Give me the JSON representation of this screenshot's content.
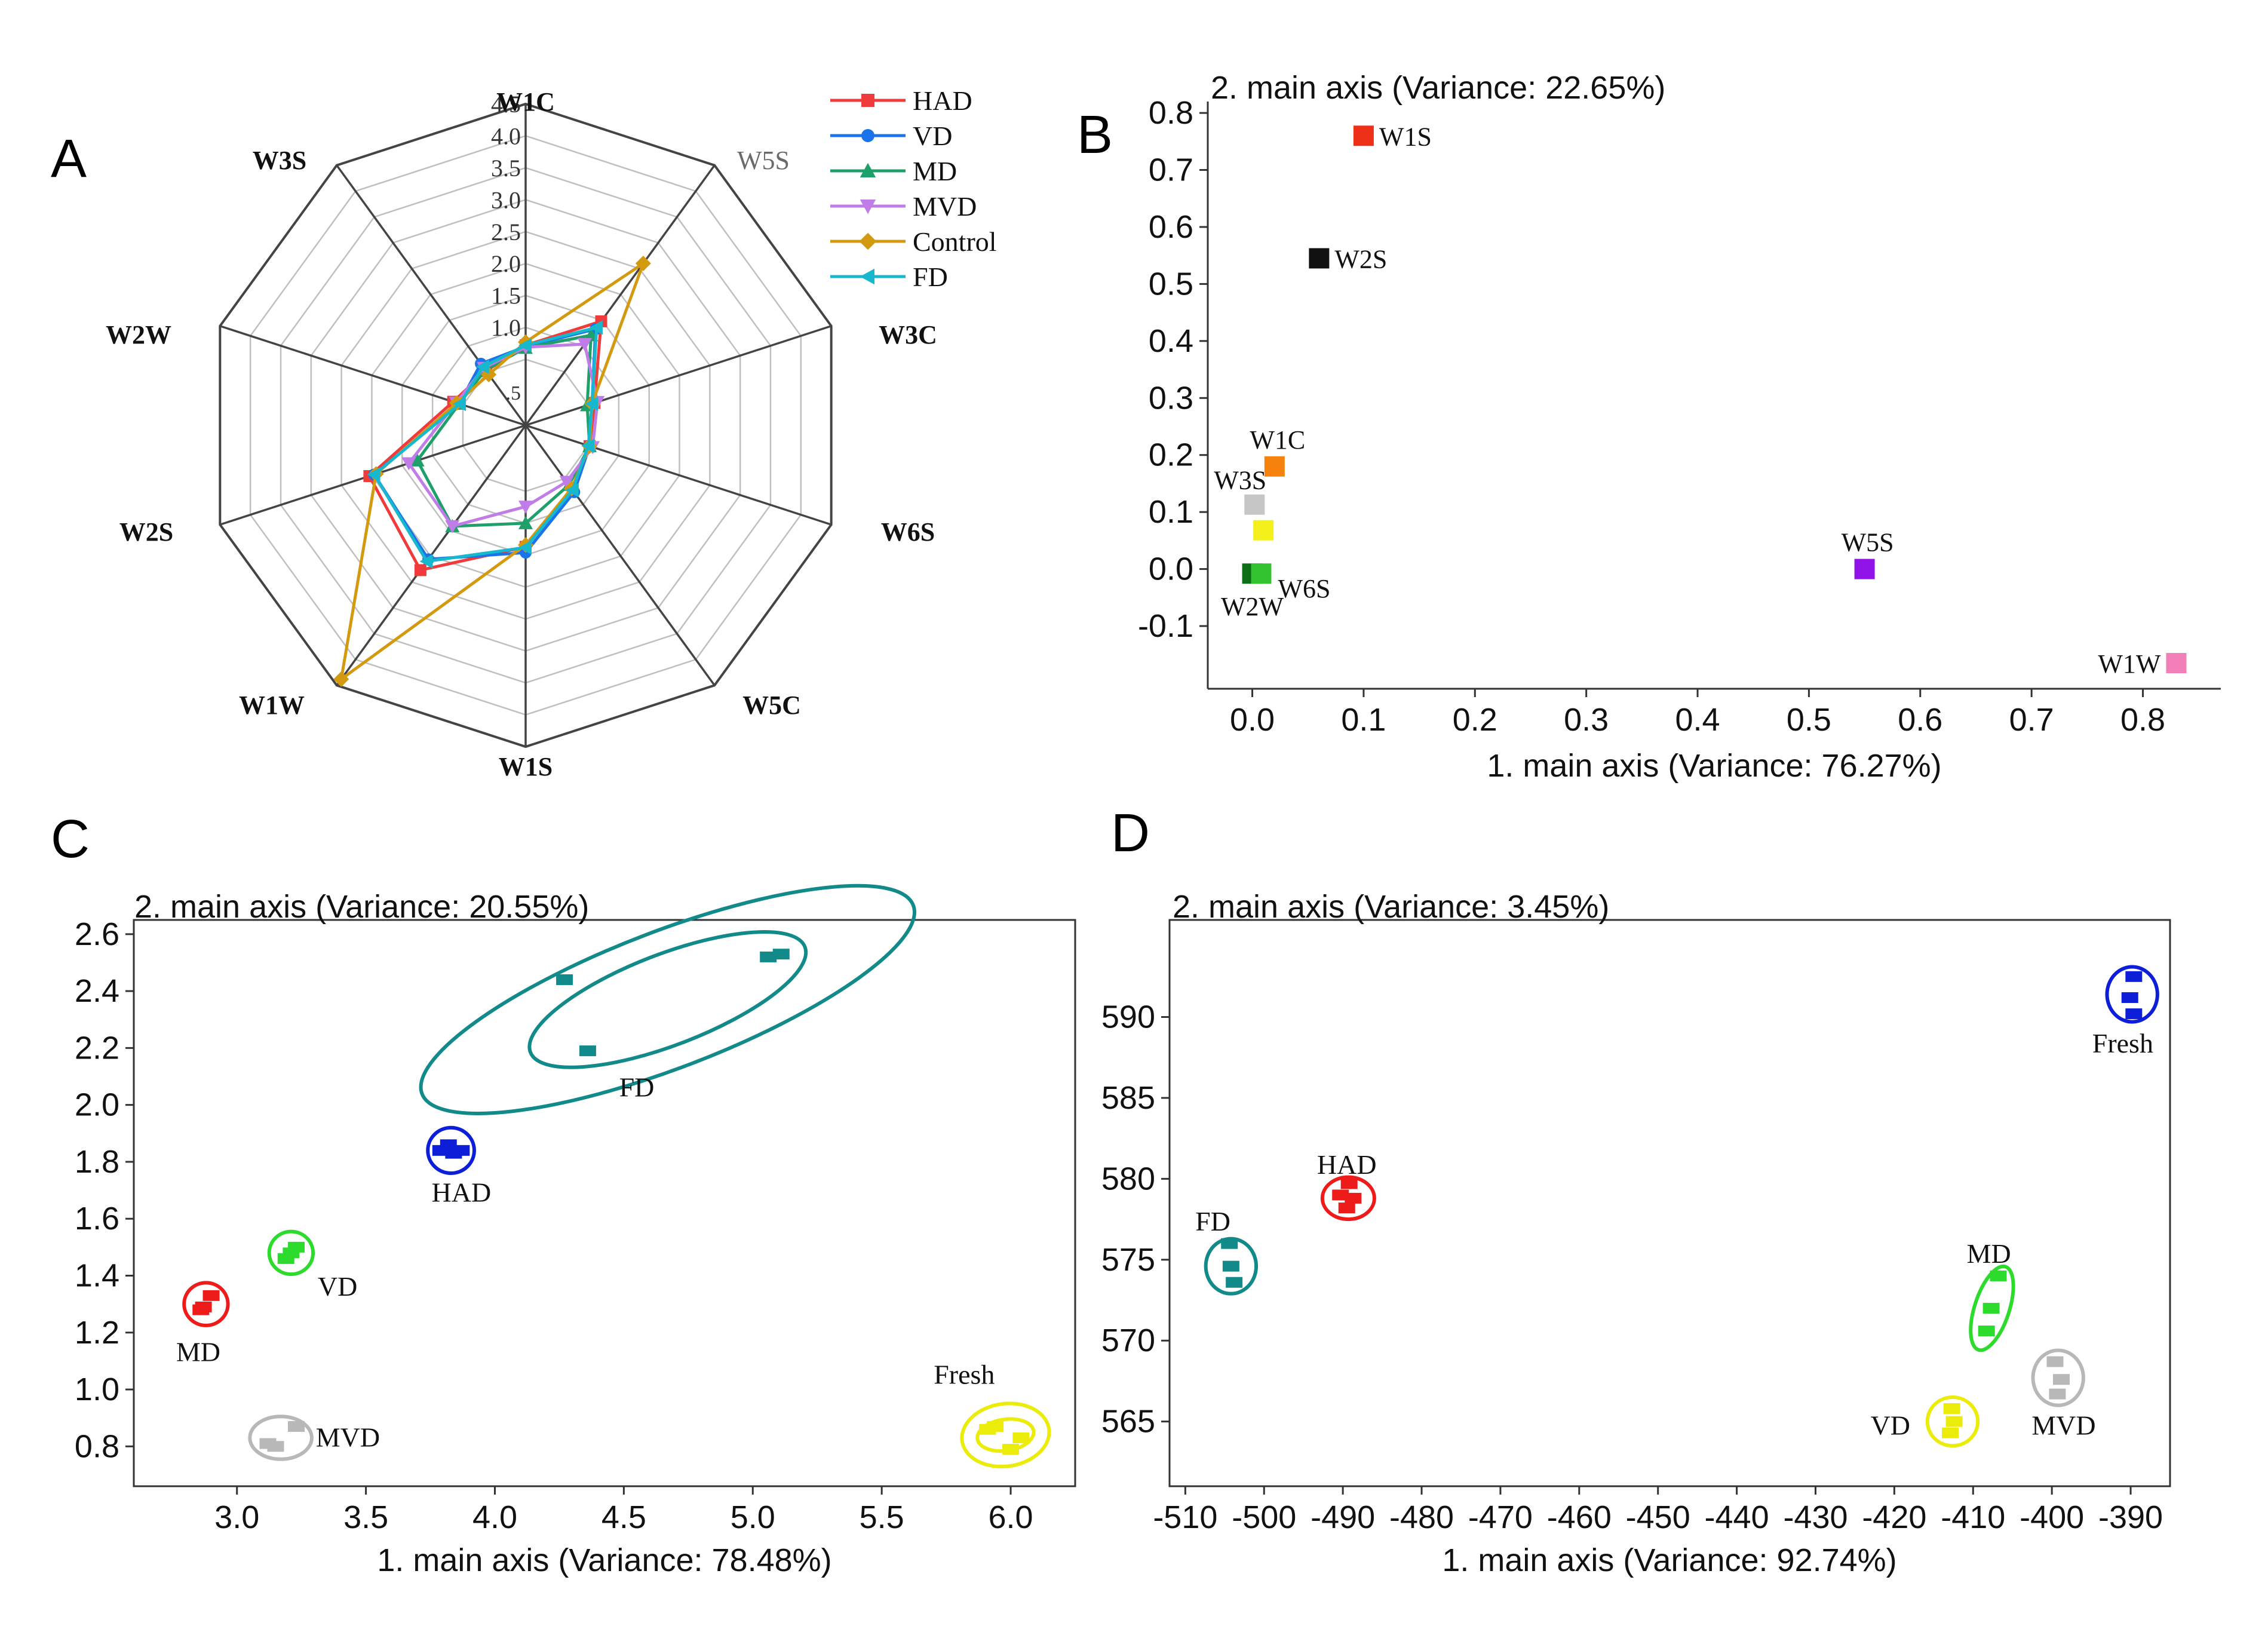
{
  "panels": {
    "A": {
      "letter": "A"
    },
    "B": {
      "letter": "B"
    },
    "C": {
      "letter": "C"
    },
    "D": {
      "letter": "D"
    }
  },
  "chart_data": [
    {
      "id": "A",
      "type": "radar",
      "axes": [
        "W1C",
        "W5S",
        "W3C",
        "W6S",
        "W5C",
        "W1S",
        "W1W",
        "W2S",
        "W2W",
        "W3S"
      ],
      "axis_label_styles": [
        "bold",
        "light",
        "bold",
        "bold",
        "bold",
        "bold",
        "bold",
        "bold",
        "bold",
        "bold"
      ],
      "rlim": [
        0,
        4.5
      ],
      "ticks": [
        "1.0",
        "1.5",
        "2.0",
        "2.5",
        "3.0",
        "3.5",
        "4.0",
        "4.5"
      ],
      "tick_values": [
        1.0,
        1.5,
        2.0,
        2.5,
        3.0,
        3.5,
        4.0,
        4.5
      ],
      "center_tick": ".5",
      "series": [
        {
          "name": "HAD",
          "color": "#ef3b3b",
          "marker": "square",
          "values": [
            0.72,
            1.48,
            0.6,
            0.52,
            0.72,
            1.37,
            2.27,
            2.04,
            0.66,
            0.52
          ]
        },
        {
          "name": "VD",
          "color": "#1a73e8",
          "marker": "circle",
          "values": [
            0.7,
            1.33,
            0.56,
            0.52,
            0.76,
            1.46,
            2.06,
            1.96,
            0.56,
            0.66
          ]
        },
        {
          "name": "MD",
          "color": "#1f9f6a",
          "marker": "triangle-up",
          "values": [
            0.68,
            1.21,
            0.48,
            0.52,
            0.62,
            1.0,
            1.42,
            1.25,
            0.56,
            0.54
          ]
        },
        {
          "name": "MVD",
          "color": "#c07de8",
          "marker": "triangle-down",
          "values": [
            0.69,
            1.04,
            0.65,
            0.57,
            0.56,
            0.74,
            1.42,
            1.39,
            0.61,
            0.58
          ]
        },
        {
          "name": "Control",
          "color": "#d49a0f",
          "marker": "diamond",
          "values": [
            0.77,
            2.6,
            0.56,
            0.52,
            0.69,
            1.34,
            4.38,
            1.93,
            0.6,
            0.45
          ]
        },
        {
          "name": "FD",
          "color": "#17b7cd",
          "marker": "triangle-left",
          "values": [
            0.72,
            1.36,
            0.56,
            0.5,
            0.72,
            1.38,
            2.1,
            1.96,
            0.55,
            0.6
          ]
        }
      ]
    },
    {
      "id": "B",
      "type": "scatter",
      "title": "2. main axis (Variance: 22.65%)",
      "xlabel": "1. main axis (Variance: 76.27%)",
      "xlim": [
        -0.04,
        0.87
      ],
      "ylim": [
        -0.21,
        0.82
      ],
      "xticks": [
        0.0,
        0.1,
        0.2,
        0.3,
        0.4,
        0.5,
        0.6,
        0.7,
        0.8
      ],
      "xtick_labels": [
        "0.0",
        "0.1",
        "0.2",
        "0.3",
        "0.4",
        "0.5",
        "0.6",
        "0.7",
        "0.8"
      ],
      "yticks": [
        -0.1,
        0.0,
        0.1,
        0.2,
        0.3,
        0.4,
        0.5,
        0.6,
        0.7,
        0.8
      ],
      "ytick_labels": [
        "-0.1",
        "0.0",
        "0.1",
        "0.2",
        "0.3",
        "0.4",
        "0.5",
        "0.6",
        "0.7",
        "0.8"
      ],
      "points": [
        {
          "label": "W1S",
          "x": 0.1,
          "y": 0.76,
          "color": "#ee3019",
          "label_pos": "right"
        },
        {
          "label": "W2S",
          "x": 0.06,
          "y": 0.545,
          "color": "#111111",
          "label_pos": "right"
        },
        {
          "label": "W1C",
          "x": 0.02,
          "y": 0.18,
          "color": "#f5820c",
          "label_pos": "top"
        },
        {
          "label": "W3S",
          "x": 0.002,
          "y": 0.113,
          "color": "#c6c6c6",
          "label_pos": "left-top"
        },
        {
          "label": "",
          "x": 0.01,
          "y": 0.068,
          "color": "#f4f01c",
          "label_pos": "none"
        },
        {
          "label": "W2W",
          "x": 0.0,
          "y": -0.008,
          "color": "#0e6e16",
          "label_pos": "bottom"
        },
        {
          "label": "W6S",
          "x": 0.008,
          "y": -0.008,
          "color": "#31c42f",
          "label_pos": "right-bottom"
        },
        {
          "label": "W5S",
          "x": 0.55,
          "y": 0.0,
          "color": "#9113e8",
          "label_pos": "top"
        },
        {
          "label": "W1W",
          "x": 0.83,
          "y": -0.165,
          "color": "#f27fb8",
          "label_pos": "left"
        }
      ]
    },
    {
      "id": "C",
      "type": "scatter",
      "title": "2. main axis (Variance: 20.55%)",
      "xlabel": "1. main axis (Variance: 78.48%)",
      "xlim": [
        2.6,
        6.25
      ],
      "ylim": [
        0.66,
        2.65
      ],
      "xticks": [
        3.0,
        3.5,
        4.0,
        4.5,
        5.0,
        5.5,
        6.0
      ],
      "xtick_labels": [
        "3.0",
        "3.5",
        "4.0",
        "4.5",
        "5.0",
        "5.5",
        "6.0"
      ],
      "yticks": [
        0.8,
        1.0,
        1.2,
        1.4,
        1.6,
        1.8,
        2.0,
        2.2,
        2.4,
        2.6
      ],
      "ytick_labels": [
        "0.8",
        "1.0",
        "1.2",
        "1.4",
        "1.6",
        "1.8",
        "2.0",
        "2.2",
        "2.4",
        "2.6"
      ],
      "groups": [
        {
          "label": "FD",
          "color": "#138a8a",
          "cx": 4.67,
          "cy": 2.37,
          "rx": 0.57,
          "ry": 0.16,
          "rot": -21,
          "rx2": 1.02,
          "ry2": 0.24,
          "label_x": 4.55,
          "label_y": 2.03,
          "points": [
            [
              4.27,
              2.44
            ],
            [
              4.36,
              2.19
            ],
            [
              5.06,
              2.52
            ],
            [
              5.11,
              2.53
            ]
          ]
        },
        {
          "label": "HAD",
          "color": "#0d1ed9",
          "cx": 3.83,
          "cy": 1.84,
          "rx": 0.09,
          "ry": 0.08,
          "rot": 0,
          "label_x": 3.87,
          "label_y": 1.66,
          "points": [
            [
              3.82,
              1.86
            ],
            [
              3.84,
              1.83
            ],
            [
              3.87,
              1.84
            ],
            [
              3.79,
              1.84
            ]
          ]
        },
        {
          "label": "VD",
          "color": "#2ddb2d",
          "cx": 3.21,
          "cy": 1.48,
          "rx": 0.085,
          "ry": 0.075,
          "rot": 0,
          "label_x": 3.39,
          "label_y": 1.33,
          "points": [
            [
              3.19,
              1.46
            ],
            [
              3.23,
              1.5
            ],
            [
              3.21,
              1.48
            ]
          ]
        },
        {
          "label": "MD",
          "color": "#ee1b1b",
          "cx": 2.88,
          "cy": 1.3,
          "rx": 0.085,
          "ry": 0.075,
          "rot": 0,
          "label_x": 2.85,
          "label_y": 1.1,
          "points": [
            [
              2.87,
              1.29
            ],
            [
              2.9,
              1.33
            ],
            [
              2.86,
              1.28
            ]
          ]
        },
        {
          "label": "MVD",
          "color": "#b8b8b8",
          "cx": 3.17,
          "cy": 0.83,
          "rx": 0.12,
          "ry": 0.075,
          "rot": 0,
          "label_x": 3.43,
          "label_y": 0.8,
          "points": [
            [
              3.12,
              0.81
            ],
            [
              3.23,
              0.87
            ],
            [
              3.15,
              0.8
            ]
          ]
        },
        {
          "label": "Fresh",
          "color": "#ecec0a",
          "cx": 5.98,
          "cy": 0.84,
          "rx": 0.17,
          "ry": 0.11,
          "rot": -8,
          "rx2": 0.11,
          "ry2": 0.055,
          "label_x": 5.82,
          "label_y": 1.02,
          "points": [
            [
              5.94,
              0.87
            ],
            [
              6.04,
              0.83
            ],
            [
              6.0,
              0.79
            ],
            [
              5.91,
              0.86
            ]
          ]
        }
      ]
    },
    {
      "id": "D",
      "type": "scatter",
      "title": "2. main axis (Variance: 3.45%)",
      "xlabel": "1. main axis (Variance: 92.74%)",
      "xlim": [
        -512,
        -385
      ],
      "ylim": [
        561,
        596
      ],
      "xticks": [
        -510,
        -500,
        -490,
        -480,
        -470,
        -460,
        -450,
        -440,
        -430,
        -420,
        -410,
        -400,
        -390
      ],
      "xtick_labels": [
        "-510",
        "-500",
        "-490",
        "-480",
        "-470",
        "-460",
        "-450",
        "-440",
        "-430",
        "-420",
        "-410",
        "-400",
        "-390"
      ],
      "yticks": [
        565,
        570,
        575,
        580,
        585,
        590
      ],
      "ytick_labels": [
        "565",
        "570",
        "575",
        "580",
        "585",
        "590"
      ],
      "groups": [
        {
          "label": "Fresh",
          "color": "#0d1ed9",
          "cx": -389.8,
          "cy": 591.4,
          "rx": 3.2,
          "ry": 1.7,
          "rot": 0,
          "label_x": -391,
          "label_y": 587.8,
          "points": [
            [
              -389.6,
              592.5
            ],
            [
              -390.1,
              591.2
            ],
            [
              -389.6,
              590.2
            ]
          ]
        },
        {
          "label": "HAD",
          "color": "#ee1b1b",
          "cx": -489.3,
          "cy": 578.8,
          "rx": 3.3,
          "ry": 1.3,
          "rot": 0,
          "label_x": -489.5,
          "label_y": 580.3,
          "points": [
            [
              -490.3,
              579.0
            ],
            [
              -488.7,
              578.8
            ],
            [
              -489.5,
              578.2
            ],
            [
              -489.2,
              579.7
            ]
          ]
        },
        {
          "label": "FD",
          "color": "#138a8a",
          "cx": -504.2,
          "cy": 574.6,
          "rx": 3.2,
          "ry": 1.7,
          "rot": 0,
          "label_x": -506.5,
          "label_y": 576.8,
          "points": [
            [
              -504.4,
              576.0
            ],
            [
              -504.2,
              574.6
            ],
            [
              -503.8,
              573.6
            ]
          ]
        },
        {
          "label": "MD",
          "color": "#2ddb2d",
          "cx": -407.6,
          "cy": 572.0,
          "rx": 2.2,
          "ry": 2.7,
          "rot": 18,
          "label_x": -408,
          "label_y": 574.8,
          "points": [
            [
              -406.8,
              574.0
            ],
            [
              -407.7,
              572.0
            ],
            [
              -408.3,
              570.6
            ]
          ]
        },
        {
          "label": "MVD",
          "color": "#b8b8b8",
          "cx": -399.2,
          "cy": 567.7,
          "rx": 3.2,
          "ry": 1.7,
          "rot": 0,
          "label_x": -398.5,
          "label_y": 564.2,
          "points": [
            [
              -399.6,
              568.7
            ],
            [
              -398.8,
              567.6
            ],
            [
              -399.3,
              566.7
            ]
          ]
        },
        {
          "label": "VD",
          "color": "#ecec0a",
          "cx": -412.6,
          "cy": 565.0,
          "rx": 3.2,
          "ry": 1.5,
          "rot": 0,
          "label_x": -420.5,
          "label_y": 564.2,
          "points": [
            [
              -412.7,
              565.8
            ],
            [
              -412.4,
              565.0
            ],
            [
              -412.9,
              564.3
            ]
          ]
        }
      ]
    }
  ]
}
